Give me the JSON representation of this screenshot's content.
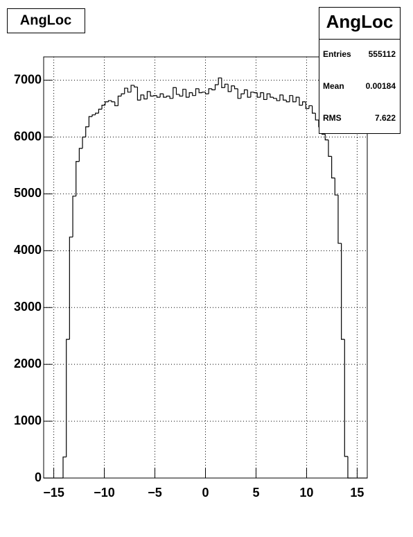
{
  "chart_data": {
    "type": "histogram",
    "title": "AngLoc",
    "bins": [
      -16,
      -15.68,
      -15.36,
      -15.04,
      -14.72,
      -14.4,
      -14.08,
      -13.76,
      -13.44,
      -13.12,
      -12.8,
      -12.48,
      -12.16,
      -11.84,
      -11.52,
      -11.2,
      -10.88,
      -10.56,
      -10.24,
      -9.92,
      -9.6,
      -9.28,
      -8.96,
      -8.64,
      -8.32,
      -8,
      -7.68,
      -7.36,
      -7.04,
      -6.72,
      -6.4,
      -6.08,
      -5.76,
      -5.44,
      -5.12,
      -4.8,
      -4.48,
      -4.16,
      -3.84,
      -3.52,
      -3.2,
      -2.88,
      -2.56,
      -2.24,
      -1.92,
      -1.6,
      -1.28,
      -0.96,
      -0.64,
      -0.32,
      0,
      0.32,
      0.64,
      0.96,
      1.28,
      1.6,
      1.92,
      2.24,
      2.56,
      2.88,
      3.2,
      3.52,
      3.84,
      4.16,
      4.48,
      4.8,
      5.12,
      5.44,
      5.76,
      6.08,
      6.4,
      6.72,
      7.04,
      7.36,
      7.68,
      8,
      8.32,
      8.64,
      8.96,
      9.28,
      9.6,
      9.92,
      10.24,
      10.56,
      10.88,
      11.2,
      11.52,
      11.84,
      12.16,
      12.48,
      12.8,
      13.12,
      13.44,
      13.76,
      14.08,
      14.4,
      14.72,
      15.04,
      15.36,
      15.68,
      16
    ],
    "values": [
      0,
      0,
      0,
      0,
      0,
      0,
      370,
      2440,
      4240,
      4960,
      5570,
      5800,
      6000,
      6180,
      6360,
      6390,
      6420,
      6490,
      6560,
      6620,
      6640,
      6620,
      6550,
      6720,
      6760,
      6860,
      6790,
      6910,
      6880,
      6650,
      6740,
      6670,
      6800,
      6720,
      6730,
      6700,
      6760,
      6700,
      6720,
      6680,
      6870,
      6750,
      6720,
      6840,
      6700,
      6780,
      6730,
      6850,
      6780,
      6790,
      6760,
      6850,
      6830,
      6920,
      7040,
      6870,
      6930,
      6800,
      6900,
      6850,
      6680,
      6760,
      6830,
      6700,
      6790,
      6780,
      6700,
      6780,
      6660,
      6760,
      6700,
      6680,
      6640,
      6740,
      6650,
      6620,
      6730,
      6620,
      6700,
      6560,
      6620,
      6500,
      6550,
      6420,
      6300,
      6180,
      6050,
      5950,
      5660,
      5280,
      4980,
      4130,
      2440,
      380,
      0,
      0,
      0,
      0,
      0,
      0
    ],
    "color": "#000000",
    "xlim": [
      -16,
      16
    ],
    "ylim": [
      0,
      7410
    ],
    "xticks": [
      {
        "value": -15,
        "label": "−15"
      },
      {
        "value": -10,
        "label": "−10"
      },
      {
        "value": -5,
        "label": "−5"
      },
      0,
      5,
      10,
      15
    ],
    "yticks": [
      0,
      1000,
      2000,
      3000,
      4000,
      5000,
      6000,
      7000
    ],
    "grid": true,
    "stats": {
      "title": "AngLoc",
      "labels": [
        "Entries",
        "Mean",
        "RMS"
      ],
      "values": [
        555112,
        0.00184,
        7.622
      ]
    }
  }
}
